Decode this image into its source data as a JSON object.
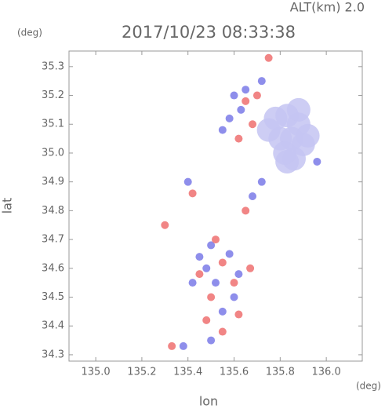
{
  "chart_data": {
    "type": "scatter",
    "title": "2017/10/23 08:33:38",
    "subtitle": "ALT(km)  2.0",
    "x_label": "lon",
    "y_label": "lat",
    "x_unit": "(deg)",
    "y_unit": "(deg)",
    "xlim": [
      134.884,
      136.156
    ],
    "ylim": [
      34.278,
      35.354
    ],
    "xticks": [
      {
        "value": 135,
        "label": "135.0"
      },
      135.2,
      135.4,
      135.6,
      135.8,
      {
        "value": 136,
        "label": "136.0"
      }
    ],
    "yticks": [
      34.3,
      34.4,
      34.5,
      34.6,
      34.7,
      34.8,
      34.9,
      {
        "value": 35,
        "label": "35.0"
      },
      35.1,
      35.2,
      35.3
    ],
    "series": [
      {
        "color": "#c4c4f2",
        "x": [
          135.78,
          135.83,
          135.88,
          135.85,
          135.8,
          135.9,
          135.86,
          135.83,
          135.75,
          135.88,
          135.82,
          135.92
        ],
        "y": [
          35.12,
          35.13,
          35.1,
          35.05,
          35.05,
          35.03,
          34.98,
          34.97,
          35.08,
          35.15,
          35.0,
          35.06
        ]
      },
      {
        "color": "#7a7ae8",
        "x": [
          135.6,
          135.58,
          135.55,
          135.65,
          135.72,
          135.63,
          135.58,
          135.48,
          135.52,
          135.45,
          135.6,
          135.55,
          135.38,
          135.5,
          135.72,
          135.68,
          135.4,
          135.96,
          135.5,
          135.62,
          135.42
        ],
        "y": [
          35.2,
          35.12,
          35.08,
          35.22,
          35.25,
          35.15,
          34.65,
          34.6,
          34.55,
          34.64,
          34.5,
          34.45,
          34.33,
          34.35,
          34.9,
          34.85,
          34.9,
          34.97,
          34.68,
          34.58,
          34.55
        ]
      },
      {
        "color": "#ee7070",
        "x": [
          135.75,
          135.7,
          135.65,
          135.62,
          135.68,
          135.3,
          135.55,
          135.45,
          135.6,
          135.5,
          135.48,
          135.62,
          135.33,
          135.55,
          135.42,
          135.65,
          135.52,
          135.67
        ],
        "y": [
          35.33,
          35.2,
          35.18,
          35.05,
          35.1,
          34.75,
          34.62,
          34.58,
          34.55,
          34.5,
          34.42,
          34.44,
          34.33,
          34.38,
          34.86,
          34.8,
          34.7,
          34.6
        ]
      }
    ]
  }
}
